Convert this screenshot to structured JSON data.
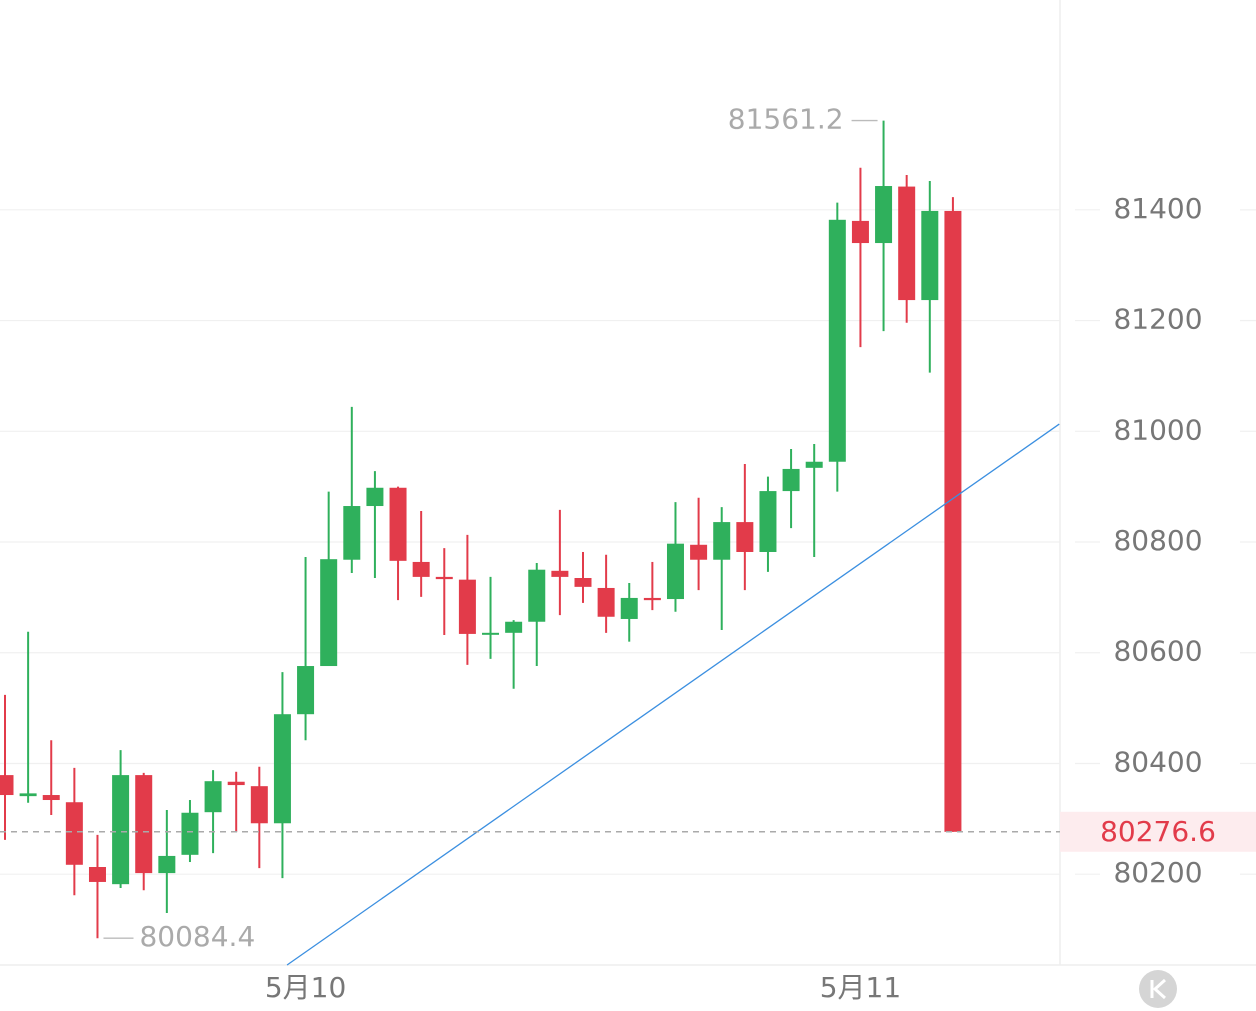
{
  "chart_data": {
    "type": "candlestick",
    "categories": [
      null,
      null,
      null,
      null,
      null,
      null,
      null,
      null,
      null,
      null,
      null,
      null,
      null,
      "5月10",
      null,
      null,
      null,
      null,
      null,
      null,
      null,
      null,
      null,
      null,
      null,
      null,
      null,
      null,
      null,
      null,
      null,
      null,
      null,
      null,
      null,
      null,
      null,
      "5月11",
      null,
      null,
      null,
      null
    ],
    "open": [
      80379,
      80341,
      80343,
      80330,
      80213,
      80182,
      80379,
      80202,
      80235,
      80312,
      80367,
      80359,
      80292,
      80489,
      80576,
      80768,
      80865,
      80898,
      80764,
      80737,
      80732,
      80634,
      80636,
      80656,
      80748,
      80735,
      80717,
      80661,
      80699,
      80697,
      80795,
      80768,
      80836,
      80782,
      80892,
      80934,
      80945,
      81380,
      81340,
      81442,
      81237,
      81398
    ],
    "high": [
      80524,
      80638,
      80442,
      80392,
      80271,
      80424,
      80383,
      80316,
      80334,
      80388,
      80385,
      80394,
      80565,
      80773,
      80891,
      81044,
      80928,
      80900,
      80856,
      80789,
      80813,
      80737,
      80659,
      80762,
      80858,
      80782,
      80777,
      80726,
      80764,
      80872,
      80880,
      80863,
      80941,
      80918,
      80968,
      80977,
      81413,
      81476,
      81561.2,
      81463,
      81452,
      81423
    ],
    "low": [
      80262,
      80329,
      80307,
      80162,
      80084.4,
      80175,
      80171,
      80130,
      80222,
      80238,
      80276,
      80211,
      80193,
      80442,
      80576,
      80744,
      80735,
      80695,
      80701,
      80632,
      80578,
      80589,
      80535,
      80576,
      80668,
      80690,
      80636,
      80620,
      80677,
      80674,
      80713,
      80641,
      80713,
      80746,
      80825,
      80773,
      80891,
      81152,
      81181,
      81196,
      81106,
      80276.6
    ],
    "close": [
      80343,
      80346,
      80334,
      80217,
      80186,
      80379,
      80202,
      80233,
      80311,
      80368,
      80361,
      80292,
      80489,
      80576,
      80769,
      80865,
      80898,
      80766,
      80737,
      80733,
      80634,
      80636,
      80656,
      80750,
      80737,
      80719,
      80665,
      80699,
      80695,
      80797,
      80768,
      80836,
      80782,
      80892,
      80932,
      80945,
      81382,
      81340,
      81443,
      81237,
      81398,
      80276.6
    ],
    "up_color": "#2fb05c",
    "down_color": "#e23b4a",
    "ylim": [
      80036,
      81779
    ],
    "yticks": [
      80200,
      80400,
      80600,
      80800,
      81000,
      81200,
      81400
    ],
    "grid": true,
    "trendline": {
      "start": [
        12.2,
        80036
      ],
      "end": [
        45.6,
        81013
      ],
      "color": "#3b8fe0"
    }
  }
}
